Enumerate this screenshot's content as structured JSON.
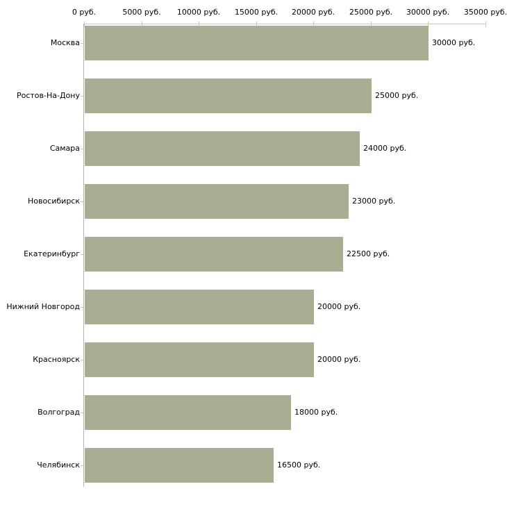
{
  "chart_data": {
    "type": "bar",
    "orientation": "horizontal",
    "title": "",
    "xlabel": "",
    "ylabel": "",
    "xlim": [
      0,
      35000
    ],
    "grid": false,
    "legend": false,
    "categories": [
      "Москва",
      "Ростов-На-Дону",
      "Самара",
      "Новосибирск",
      "Екатеринбург",
      "Нижний Новгород",
      "Красноярск",
      "Волгоград",
      "Челябинск"
    ],
    "values": [
      30000,
      25000,
      24000,
      23000,
      22500,
      20000,
      20000,
      18000,
      16500
    ],
    "value_labels": [
      "30000 руб.",
      "25000 руб.",
      "24000 руб.",
      "23000 руб.",
      "22500 руб.",
      "20000 руб.",
      "20000 руб.",
      "18000 руб.",
      "16500 руб."
    ],
    "x_ticks": [
      0,
      5000,
      10000,
      15000,
      20000,
      25000,
      30000,
      35000
    ],
    "x_tick_labels": [
      "0 руб.",
      "5000 руб.",
      "10000 руб.",
      "15000 руб.",
      "20000 руб.",
      "25000 руб.",
      "30000 руб.",
      "35000 руб."
    ],
    "colors": {
      "bar_fill": "#a9ae93",
      "x_axis_line": "#c6c6c6",
      "y_axis_line": "#b2b2b2",
      "tick_mark": "#ccc9a4",
      "text": "#000000",
      "background": "#ffffff"
    }
  }
}
